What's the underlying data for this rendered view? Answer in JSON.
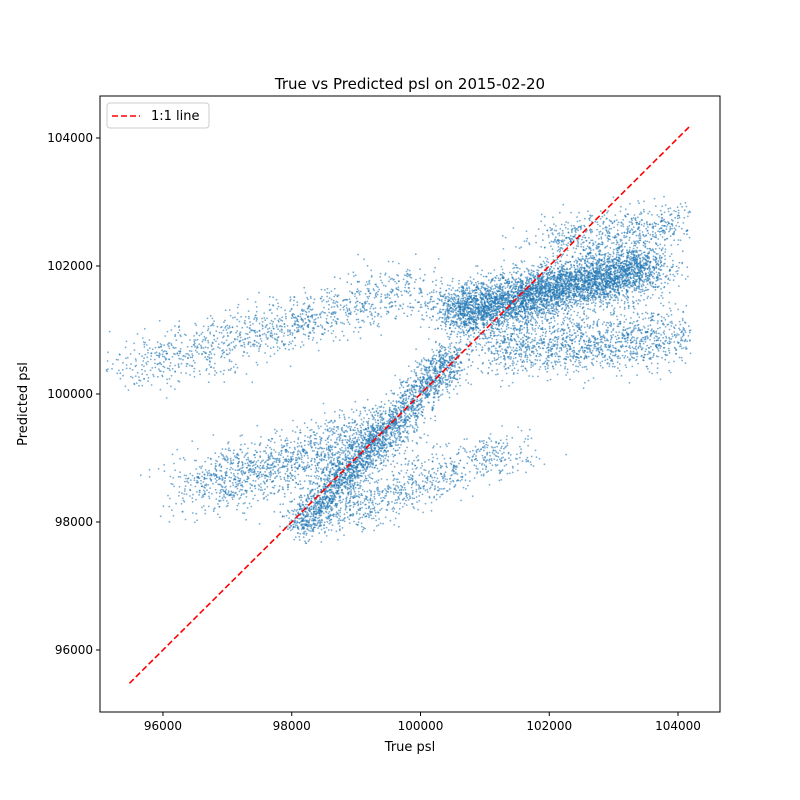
{
  "chart_data": {
    "type": "scatter",
    "title": "True vs Predicted psl on 2015-02-20",
    "xlabel": "True psl",
    "ylabel": "Predicted psl",
    "xlim": [
      95022,
      104652
    ],
    "ylim": [
      95031,
      104656
    ],
    "xticks": [
      96000,
      98000,
      100000,
      102000,
      104000
    ],
    "yticks": [
      96000,
      98000,
      100000,
      102000,
      104000
    ],
    "xtick_labels": [
      "96000",
      "98000",
      "100000",
      "102000",
      "104000"
    ],
    "ytick_labels": [
      "96000",
      "98000",
      "100000",
      "102000",
      "104000"
    ],
    "grid": false,
    "legend": {
      "placement": "top-left",
      "entries": [
        "1:1 line"
      ]
    },
    "reference_line": {
      "name": "1:1 line",
      "x": [
        95480,
        104200
      ],
      "y": [
        95480,
        104200
      ],
      "color": "#ff0000",
      "style": "dashed"
    },
    "scatter_color": "#1f77b4",
    "scatter_alpha": 0.6,
    "point_clusters_approx": [
      {
        "from": [
          98100,
          97900
        ],
        "to": [
          100500,
          100600
        ],
        "spread": [
          250,
          250
        ],
        "count": 2500
      },
      {
        "from": [
          100500,
          101250
        ],
        "to": [
          103600,
          102000
        ],
        "spread": [
          420,
          330
        ],
        "count": 5000
      },
      {
        "from": [
          95600,
          100400
        ],
        "to": [
          100000,
          101700
        ],
        "spread": [
          600,
          330
        ],
        "count": 1200
      },
      {
        "from": [
          96500,
          98500
        ],
        "to": [
          99500,
          99400
        ],
        "spread": [
          650,
          380
        ],
        "count": 1500
      },
      {
        "from": [
          101000,
          100700
        ],
        "to": [
          104000,
          100900
        ],
        "spread": [
          650,
          380
        ],
        "count": 1500
      },
      {
        "from": [
          98500,
          98000
        ],
        "to": [
          101500,
          99200
        ],
        "spread": [
          450,
          280
        ],
        "count": 800
      },
      {
        "from": [
          102000,
          102400
        ],
        "to": [
          104100,
          102700
        ],
        "spread": [
          450,
          260
        ],
        "count": 600
      }
    ]
  }
}
